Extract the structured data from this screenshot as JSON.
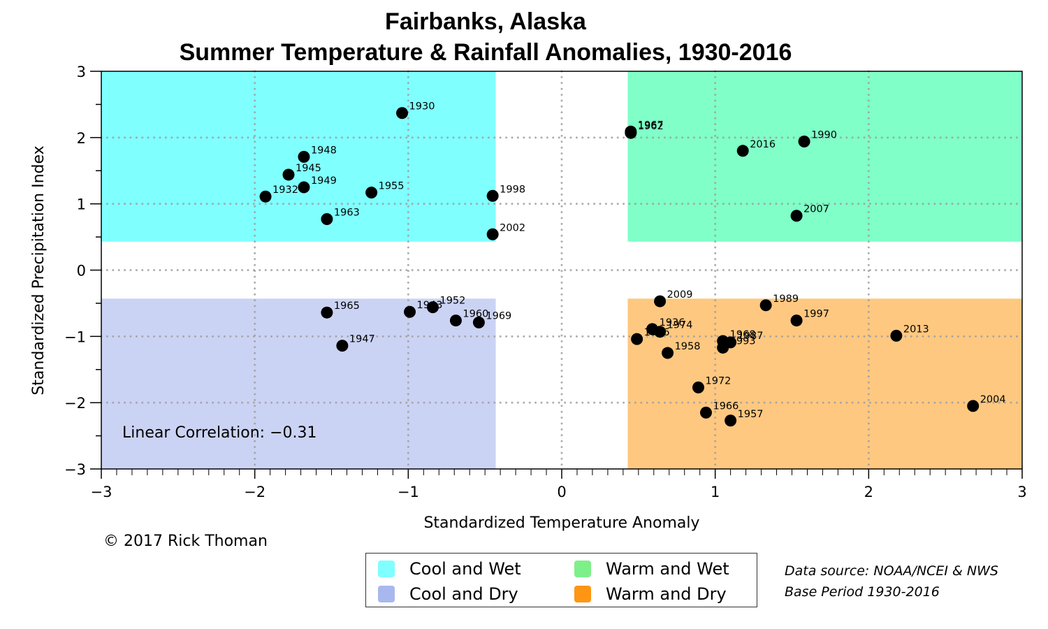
{
  "header": {
    "title_line1": "Fairbanks, Alaska",
    "title_line2": "Summer Temperature & Rainfall Anomalies, 1930-2016"
  },
  "annotation": {
    "correlation": "Linear Correlation: −0.31"
  },
  "footer": {
    "copyright": "© 2017 Rick Thoman",
    "source_line1": "Data source: NOAA/NCEI & NWS",
    "source_line2": "Base Period 1930-2016"
  },
  "legend": {
    "items": [
      {
        "label": "Cool and Wet",
        "color": "#7fffff"
      },
      {
        "label": "Cool and Dry",
        "color": "#a8b8ee"
      },
      {
        "label": "Warm and Wet",
        "color": "#7ef08a"
      },
      {
        "label": "Warm and Dry",
        "color": "#ff9512"
      }
    ]
  },
  "chart_data": {
    "type": "scatter",
    "title": "Fairbanks, Alaska — Summer Temperature & Rainfall Anomalies, 1930-2016",
    "xlabel": "Standardized Temperature Anomaly",
    "ylabel": "Standardized Precipitation Index",
    "xlim": [
      -3,
      3
    ],
    "ylim": [
      -3,
      3
    ],
    "xticks": [
      "−3",
      "−2",
      "−1",
      "0",
      "1",
      "2",
      "3"
    ],
    "yticks": [
      "−3",
      "−2",
      "−1",
      "0",
      "1",
      "2",
      "3"
    ],
    "grid": "dotted at integer values",
    "quadrants": [
      {
        "name": "Cool and Wet",
        "x": [
          -3,
          -0.43
        ],
        "y": [
          0.43,
          3
        ],
        "fill": "#80ffff"
      },
      {
        "name": "Warm and Wet",
        "x": [
          0.43,
          3
        ],
        "y": [
          0.43,
          3
        ],
        "fill": "#80ffc8"
      },
      {
        "name": "Cool and Dry",
        "x": [
          -3,
          -0.43
        ],
        "y": [
          -3,
          -0.43
        ],
        "fill": "#cbd3f4"
      },
      {
        "name": "Warm and Dry",
        "x": [
          0.43,
          3
        ],
        "y": [
          -3,
          -0.43
        ],
        "fill": "#ffc880"
      }
    ],
    "correlation": -0.31,
    "points": [
      {
        "year": "1930",
        "x": -1.04,
        "y": 2.37
      },
      {
        "year": "1948",
        "x": -1.68,
        "y": 1.71
      },
      {
        "year": "1945",
        "x": -1.78,
        "y": 1.44
      },
      {
        "year": "1949",
        "x": -1.68,
        "y": 1.25
      },
      {
        "year": "1932",
        "x": -1.93,
        "y": 1.11
      },
      {
        "year": "1955",
        "x": -1.24,
        "y": 1.17
      },
      {
        "year": "1963",
        "x": -1.53,
        "y": 0.77
      },
      {
        "year": "1998",
        "x": -0.45,
        "y": 1.12
      },
      {
        "year": "2002",
        "x": -0.45,
        "y": 0.54
      },
      {
        "year": "1967",
        "x": 0.45,
        "y": 2.09
      },
      {
        "year": "1962",
        "x": 0.45,
        "y": 2.07
      },
      {
        "year": "2016",
        "x": 1.18,
        "y": 1.8
      },
      {
        "year": "1990",
        "x": 1.58,
        "y": 1.94
      },
      {
        "year": "2007",
        "x": 1.53,
        "y": 0.82
      },
      {
        "year": "1965",
        "x": -1.53,
        "y": -0.64
      },
      {
        "year": "1947",
        "x": -1.43,
        "y": -1.14
      },
      {
        "year": "1943",
        "x": -0.99,
        "y": -0.63
      },
      {
        "year": "1952",
        "x": -0.84,
        "y": -0.56
      },
      {
        "year": "1960",
        "x": -0.69,
        "y": -0.76
      },
      {
        "year": "1969",
        "x": -0.54,
        "y": -0.79
      },
      {
        "year": "2009",
        "x": 0.64,
        "y": -0.47
      },
      {
        "year": "1936",
        "x": 0.59,
        "y": -0.89
      },
      {
        "year": "1974",
        "x": 0.64,
        "y": -0.93
      },
      {
        "year": "1956",
        "x": 0.49,
        "y": -1.04
      },
      {
        "year": "1968",
        "x": 1.05,
        "y": -1.07
      },
      {
        "year": "1987",
        "x": 1.1,
        "y": -1.09
      },
      {
        "year": "1993",
        "x": 1.05,
        "y": -1.17
      },
      {
        "year": "1958",
        "x": 0.69,
        "y": -1.25
      },
      {
        "year": "1989",
        "x": 1.33,
        "y": -0.53
      },
      {
        "year": "1997",
        "x": 1.53,
        "y": -0.76
      },
      {
        "year": "2013",
        "x": 2.18,
        "y": -0.99
      },
      {
        "year": "1972",
        "x": 0.89,
        "y": -1.77
      },
      {
        "year": "1966",
        "x": 0.94,
        "y": -2.15
      },
      {
        "year": "1957",
        "x": 1.1,
        "y": -2.27
      },
      {
        "year": "2004",
        "x": 2.68,
        "y": -2.05
      }
    ]
  }
}
